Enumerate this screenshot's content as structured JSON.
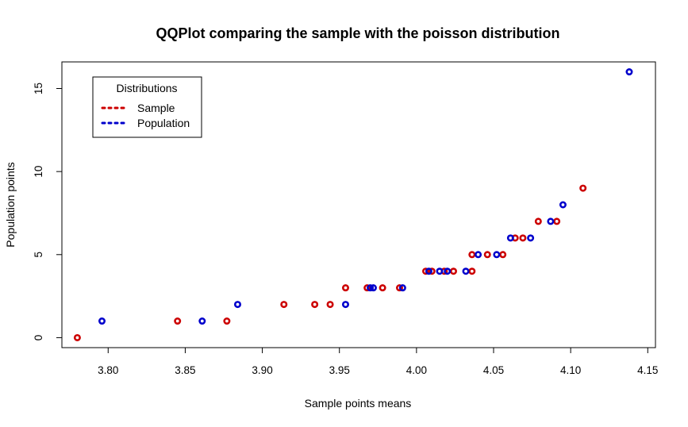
{
  "chart_data": {
    "type": "scatter",
    "title": "QQPlot comparing the sample with the poisson distribution",
    "xlabel": "Sample points means",
    "ylabel": "Population points",
    "xlim": [
      3.77,
      4.155
    ],
    "ylim": [
      -0.6,
      16.6
    ],
    "xticks": [
      "3.80",
      "3.85",
      "3.90",
      "3.95",
      "4.00",
      "4.05",
      "4.10",
      "4.15"
    ],
    "xtick_values": [
      3.8,
      3.85,
      3.9,
      3.95,
      4.0,
      4.05,
      4.1,
      4.15
    ],
    "yticks": [
      "0",
      "5",
      "10",
      "15"
    ],
    "ytick_values": [
      0,
      5,
      10,
      15
    ],
    "grid": false,
    "legend": {
      "title": "Distributions",
      "placement": "top-left",
      "entries": [
        "Sample",
        "Population"
      ]
    },
    "series": [
      {
        "name": "Sample",
        "color": "#cc0000",
        "points": [
          {
            "x": 3.78,
            "y": 0
          },
          {
            "x": 3.845,
            "y": 1
          },
          {
            "x": 3.877,
            "y": 1
          },
          {
            "x": 3.914,
            "y": 2
          },
          {
            "x": 3.934,
            "y": 2
          },
          {
            "x": 3.944,
            "y": 2
          },
          {
            "x": 3.954,
            "y": 3
          },
          {
            "x": 3.968,
            "y": 3
          },
          {
            "x": 3.978,
            "y": 3
          },
          {
            "x": 3.989,
            "y": 3
          },
          {
            "x": 4.006,
            "y": 4
          },
          {
            "x": 4.01,
            "y": 4
          },
          {
            "x": 4.018,
            "y": 4
          },
          {
            "x": 4.024,
            "y": 4
          },
          {
            "x": 4.036,
            "y": 4
          },
          {
            "x": 4.036,
            "y": 5
          },
          {
            "x": 4.046,
            "y": 5
          },
          {
            "x": 4.056,
            "y": 5
          },
          {
            "x": 4.064,
            "y": 6
          },
          {
            "x": 4.069,
            "y": 6
          },
          {
            "x": 4.079,
            "y": 7
          },
          {
            "x": 4.091,
            "y": 7
          },
          {
            "x": 4.108,
            "y": 9
          }
        ]
      },
      {
        "name": "Population",
        "color": "#0000cc",
        "points": [
          {
            "x": 3.796,
            "y": 1
          },
          {
            "x": 3.861,
            "y": 1
          },
          {
            "x": 3.884,
            "y": 2
          },
          {
            "x": 3.954,
            "y": 2
          },
          {
            "x": 3.97,
            "y": 3
          },
          {
            "x": 3.972,
            "y": 3
          },
          {
            "x": 3.991,
            "y": 3
          },
          {
            "x": 4.008,
            "y": 4
          },
          {
            "x": 4.015,
            "y": 4
          },
          {
            "x": 4.02,
            "y": 4
          },
          {
            "x": 4.032,
            "y": 4
          },
          {
            "x": 4.04,
            "y": 5
          },
          {
            "x": 4.052,
            "y": 5
          },
          {
            "x": 4.061,
            "y": 6
          },
          {
            "x": 4.074,
            "y": 6
          },
          {
            "x": 4.087,
            "y": 7
          },
          {
            "x": 4.095,
            "y": 8
          },
          {
            "x": 4.138,
            "y": 16
          }
        ]
      }
    ]
  }
}
